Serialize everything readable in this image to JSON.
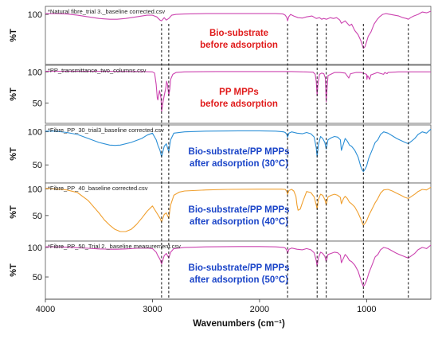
{
  "chart_data": {
    "type": "line",
    "xlabel": "Wavenumbers (cm⁻¹)",
    "xlim": [
      4000,
      400
    ],
    "x_reversed": true,
    "x_ticks": [
      "4000",
      "3000",
      "2000",
      "1000"
    ],
    "x_tick_values": [
      4000,
      3000,
      2000,
      1000
    ],
    "ylabel": "%T",
    "ref_lines": [
      2915,
      2848,
      1738,
      1462,
      1377,
      1030,
      610
    ],
    "panels": [
      {
        "file": "*Natural fibre_trial 3._baseline corrected.csv",
        "label_lines": [
          "Bio-substrate",
          "before adsorption"
        ],
        "label_color": "#e01b1b",
        "line_color": "#cc44b0",
        "y_ticks": [
          "100"
        ],
        "y_tick_values": [
          100
        ],
        "ylim": [
          40,
          108
        ],
        "series": {
          "x": [
            4000,
            3900,
            3800,
            3700,
            3600,
            3500,
            3400,
            3330,
            3250,
            3150,
            3050,
            3000,
            2960,
            2930,
            2915,
            2890,
            2870,
            2848,
            2820,
            2780,
            2700,
            2500,
            2300,
            2100,
            1950,
            1850,
            1780,
            1760,
            1745,
            1738,
            1728,
            1710,
            1680,
            1640,
            1600,
            1560,
            1510,
            1470,
            1440,
            1420,
            1400,
            1375,
            1340,
            1310,
            1280,
            1250,
            1235,
            1200,
            1160,
            1140,
            1110,
            1080,
            1055,
            1040,
            1030,
            1015,
            1000,
            985,
            960,
            930,
            900,
            880,
            850,
            820,
            780,
            740,
            700,
            660,
            630,
            610,
            590,
            560,
            520,
            480,
            440,
            400
          ],
          "y": [
            101,
            101,
            100.5,
            99,
            97,
            95,
            94,
            94,
            95,
            97,
            99,
            99,
            97,
            93,
            92,
            96,
            93,
            95,
            99,
            100,
            100.5,
            101,
            101,
            101,
            101,
            101,
            100.5,
            99,
            96,
            92,
            97,
            100,
            98,
            96,
            95.5,
            97,
            98,
            95,
            96,
            94,
            95,
            94,
            96,
            95,
            96,
            93,
            89,
            92,
            86,
            88,
            80,
            75,
            68,
            62,
            58,
            60,
            66,
            73,
            78,
            88,
            94,
            97,
            100,
            101,
            100,
            99,
            98,
            96,
            95,
            94,
            96,
            98,
            100,
            103,
            102,
            104
          ]
        }
      },
      {
        "file": "*PP_transmittance_two_columns.csv",
        "label_lines": [
          "PP MPPs",
          "before adsorption"
        ],
        "label_color": "#e01b1b",
        "line_color": "#cc44b0",
        "y_ticks": [
          "100",
          "50"
        ],
        "y_tick_values": [
          100,
          50
        ],
        "ylim": [
          20,
          108
        ],
        "series": {
          "x": [
            4000,
            3500,
            3100,
            3000,
            2980,
            2965,
            2955,
            2950,
            2935,
            2920,
            2915,
            2905,
            2890,
            2875,
            2868,
            2860,
            2848,
            2838,
            2830,
            2810,
            2780,
            2700,
            2400,
            2000,
            1800,
            1700,
            1600,
            1500,
            1480,
            1470,
            1462,
            1455,
            1440,
            1420,
            1400,
            1385,
            1377,
            1370,
            1360,
            1300,
            1250,
            1200,
            1166,
            1150,
            1100,
            1050,
            1000,
            997,
            990,
            972,
            960,
            900,
            842,
            830,
            808,
            800,
            700,
            600,
            500,
            400
          ],
          "y": [
            101,
            101,
            100.5,
            100,
            98,
            80,
            58,
            55,
            70,
            58,
            36,
            48,
            62,
            75,
            85,
            80,
            62,
            72,
            88,
            96,
            99,
            100,
            100.5,
            100.5,
            100.5,
            100.5,
            100,
            99.5,
            96,
            85,
            62,
            80,
            96,
            98,
            97,
            90,
            52,
            72,
            94,
            99,
            99,
            98,
            90,
            97,
            99,
            99,
            96,
            88,
            94,
            88,
            95,
            99,
            96,
            99,
            97,
            99,
            100,
            100,
            100,
            100
          ]
        }
      },
      {
        "file": "*Fibre_PP_30_trial3_baseline corrected.csv",
        "label_lines": [
          "Bio-substrate/PP MPPs",
          "after adsorption (30°C)"
        ],
        "label_color": "#1a44c8",
        "line_color": "#2b8fd6",
        "y_ticks": [
          "100",
          "50"
        ],
        "y_tick_values": [
          100,
          50
        ],
        "ylim": [
          25,
          108
        ],
        "series": {
          "x": [
            4000,
            3900,
            3800,
            3700,
            3600,
            3500,
            3400,
            3350,
            3300,
            3200,
            3100,
            3050,
            3000,
            2965,
            2950,
            2930,
            2915,
            2890,
            2870,
            2860,
            2848,
            2830,
            2800,
            2700,
            2500,
            2200,
            2000,
            1850,
            1775,
            1760,
            1745,
            1738,
            1725,
            1700,
            1650,
            1600,
            1560,
            1520,
            1490,
            1470,
            1462,
            1450,
            1430,
            1410,
            1390,
            1377,
            1360,
            1330,
            1300,
            1270,
            1245,
            1235,
            1215,
            1200,
            1180,
            1160,
            1140,
            1110,
            1080,
            1055,
            1040,
            1030,
            1020,
            1000,
            980,
            950,
            920,
            895,
            870,
            840,
            800,
            760,
            720,
            680,
            640,
            610,
            580,
            550,
            520,
            480,
            440,
            400
          ],
          "y": [
            101,
            101,
            99,
            96,
            90,
            84,
            80,
            79.5,
            80,
            84,
            90,
            95,
            98,
            88,
            80,
            72,
            62,
            78,
            82,
            76,
            70,
            88,
            98,
            100,
            101,
            101.5,
            101.5,
            101,
            100,
            99,
            96,
            92,
            98,
            100,
            98,
            97,
            99,
            97,
            92,
            76,
            62,
            80,
            93,
            90,
            84,
            74,
            88,
            91,
            93,
            92,
            88,
            72,
            82,
            90,
            86,
            80,
            78,
            72,
            62,
            48,
            42,
            40,
            42,
            48,
            60,
            72,
            84,
            88,
            96,
            100,
            98,
            94,
            90,
            87,
            84,
            82,
            86,
            90,
            96,
            100,
            98,
            104
          ]
        }
      },
      {
        "file": "*Fibre_PP_40_baseline corrected.csv",
        "label_lines": [
          "Bio-substrate/PP MPPs",
          "after adsorption (40°C)"
        ],
        "label_color": "#1a44c8",
        "line_color": "#f0a030",
        "y_ticks": [
          "100",
          "50"
        ],
        "y_tick_values": [
          100,
          50
        ],
        "ylim": [
          5,
          108
        ],
        "series": {
          "x": [
            4000,
            3900,
            3800,
            3700,
            3600,
            3500,
            3450,
            3400,
            3350,
            3300,
            3250,
            3200,
            3150,
            3100,
            3050,
            3000,
            2960,
            2930,
            2915,
            2890,
            2870,
            2860,
            2848,
            2830,
            2800,
            2750,
            2700,
            2500,
            2300,
            2000,
            1800,
            1760,
            1745,
            1738,
            1725,
            1700,
            1680,
            1660,
            1650,
            1640,
            1620,
            1600,
            1560,
            1520,
            1490,
            1470,
            1462,
            1450,
            1430,
            1410,
            1390,
            1377,
            1360,
            1330,
            1300,
            1270,
            1245,
            1235,
            1215,
            1200,
            1180,
            1160,
            1140,
            1110,
            1080,
            1055,
            1040,
            1030,
            1020,
            1000,
            980,
            950,
            920,
            895,
            870,
            840,
            800,
            760,
            720,
            680,
            640,
            610,
            580,
            550,
            520,
            480,
            440,
            400
          ],
          "y": [
            101,
            100,
            98,
            93,
            78,
            55,
            42,
            32,
            24,
            20,
            20,
            24,
            33,
            45,
            58,
            68,
            55,
            45,
            38,
            52,
            55,
            50,
            45,
            70,
            88,
            94,
            96,
            98,
            99,
            99.5,
            99.5,
            99,
            95,
            90,
            97,
            99,
            96,
            86,
            70,
            60,
            62,
            74,
            95,
            93,
            85,
            70,
            62,
            80,
            90,
            88,
            80,
            70,
            85,
            88,
            90,
            88,
            84,
            72,
            82,
            86,
            82,
            75,
            72,
            66,
            55,
            44,
            36,
            32,
            34,
            40,
            50,
            62,
            74,
            82,
            92,
            98,
            99,
            96,
            92,
            88,
            84,
            82,
            86,
            90,
            95,
            99,
            98,
            103
          ]
        }
      },
      {
        "file": "*Fibre_PP_50_Trial 2._baseline measurement.csv",
        "label_lines": [
          "Bio-substrate/PP MPPs",
          "after adsorption (50°C)"
        ],
        "label_color": "#1a44c8",
        "line_color": "#cc44b0",
        "y_ticks": [
          "100",
          "50"
        ],
        "y_tick_values": [
          100,
          50
        ],
        "ylim": [
          15,
          108
        ],
        "series": {
          "x": [
            4000,
            3900,
            3800,
            3700,
            3600,
            3500,
            3400,
            3330,
            3250,
            3150,
            3050,
            3000,
            2965,
            2950,
            2930,
            2915,
            2890,
            2870,
            2860,
            2848,
            2830,
            2800,
            2700,
            2500,
            2200,
            2000,
            1850,
            1775,
            1760,
            1745,
            1738,
            1725,
            1700,
            1650,
            1600,
            1560,
            1520,
            1490,
            1470,
            1462,
            1450,
            1430,
            1410,
            1390,
            1377,
            1360,
            1330,
            1300,
            1270,
            1245,
            1235,
            1215,
            1200,
            1180,
            1160,
            1140,
            1110,
            1080,
            1055,
            1040,
            1030,
            1020,
            1000,
            980,
            950,
            920,
            895,
            870,
            840,
            800,
            760,
            720,
            680,
            640,
            610,
            580,
            550,
            520,
            480,
            440,
            400
          ],
          "y": [
            101,
            101,
            100.5,
            99.5,
            98.5,
            97.5,
            97,
            97,
            97.5,
            98.5,
            99,
            98,
            92,
            86,
            80,
            72,
            86,
            90,
            86,
            82,
            92,
            98,
            100,
            101,
            101.5,
            101.5,
            101,
            100,
            99,
            95,
            90,
            97,
            99,
            97,
            96,
            98,
            96,
            91,
            78,
            68,
            82,
            92,
            90,
            85,
            76,
            88,
            90,
            92,
            91,
            87,
            74,
            82,
            88,
            84,
            78,
            76,
            70,
            60,
            46,
            38,
            34,
            36,
            44,
            56,
            70,
            84,
            88,
            96,
            100,
            98,
            94,
            90,
            87,
            84,
            82,
            86,
            90,
            96,
            100,
            98,
            104
          ]
        }
      }
    ]
  }
}
